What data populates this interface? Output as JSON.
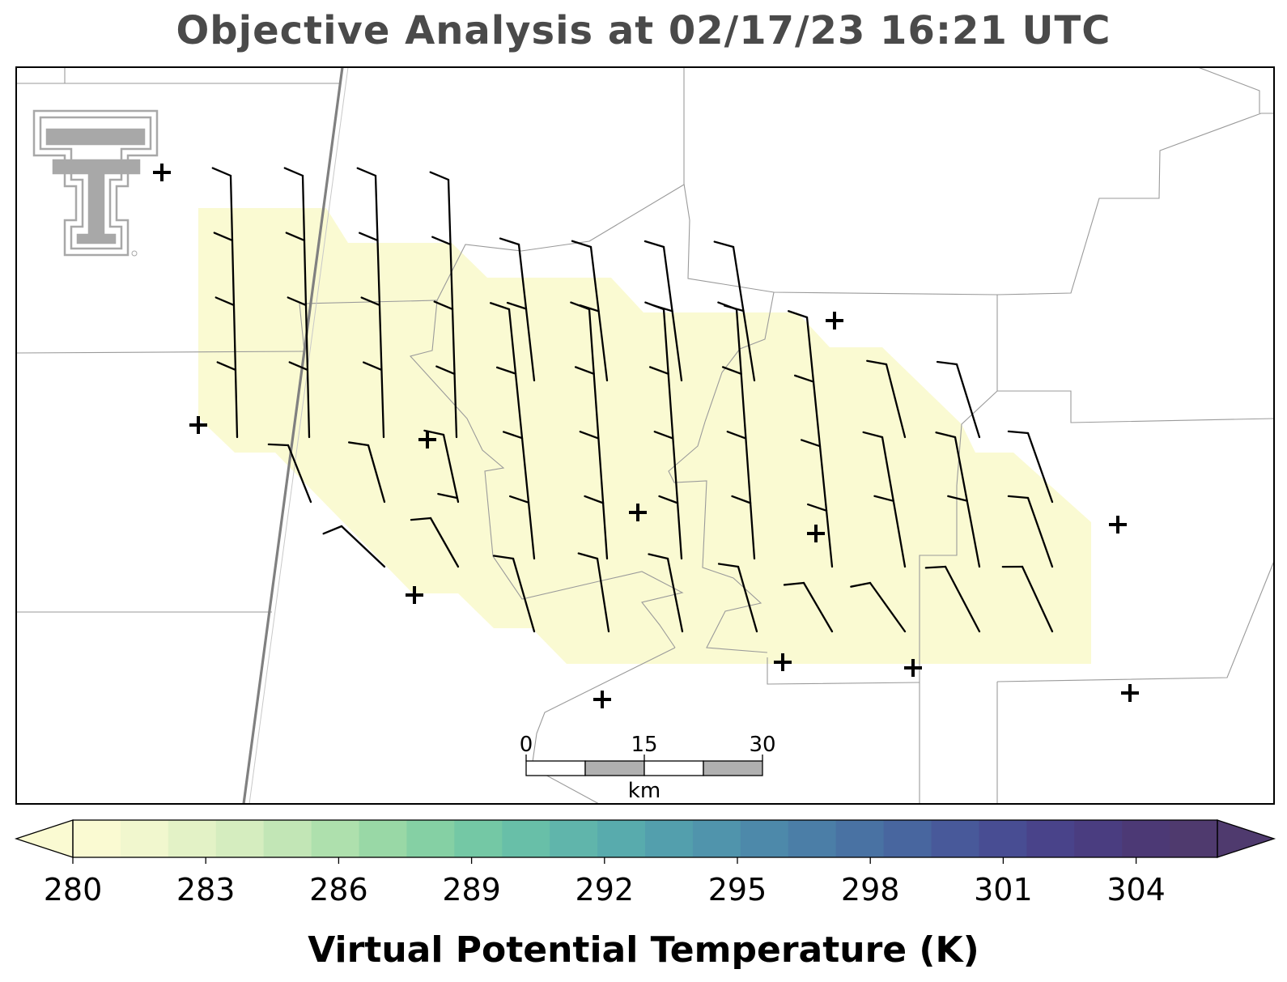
{
  "title": "Objective Analysis at 02/17/23 16:21 UTC",
  "colorbar": {
    "label": "Virtual Potential Temperature (K)",
    "ticks": [
      "280",
      "283",
      "286",
      "289",
      "292",
      "295",
      "298",
      "301",
      "304"
    ],
    "colors": [
      "#fafad2",
      "#f1f7ce",
      "#e3f2c6",
      "#d5edbf",
      "#c2e6b6",
      "#aee0ad",
      "#99d8a6",
      "#85d0a4",
      "#74c8a5",
      "#68bfa8",
      "#60b5ab",
      "#58abad",
      "#539fad",
      "#5094ac",
      "#4d89aa",
      "#4b7ea7",
      "#4972a3",
      "#48669f",
      "#48599a",
      "#484d93",
      "#49438a",
      "#4a3d80",
      "#4c3975",
      "#4f3a6e"
    ],
    "extend": "both"
  },
  "scale_bar": {
    "labels": [
      "0",
      "15",
      "30"
    ],
    "unit": "km"
  },
  "analysis_fill_color": "#fafad2",
  "map_colors": {
    "boundary": "#9a9a9a",
    "highway": "#808080",
    "barb": "#000000",
    "station": "#000000",
    "logo": "#a8a8a8"
  },
  "logo": {
    "name": "texas-tech-double-t-logo"
  }
}
